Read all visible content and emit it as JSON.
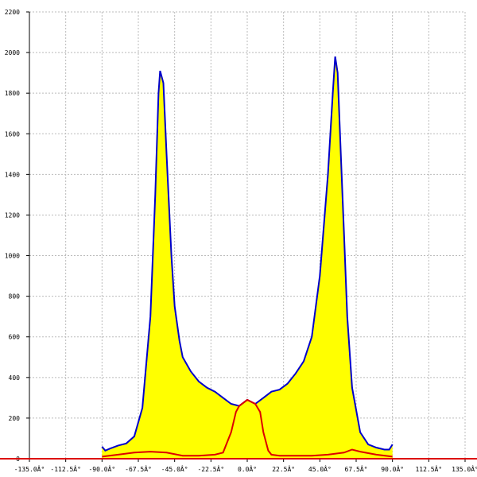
{
  "chart_data": {
    "type": "area",
    "xlim": [
      -135,
      135
    ],
    "ylim": [
      0,
      2200
    ],
    "xticks": [
      {
        "value": -135,
        "label": "-135.0Â°"
      },
      {
        "value": -112.5,
        "label": "-112.5Â°"
      },
      {
        "value": -90,
        "label": "-90.0Â°"
      },
      {
        "value": -67.5,
        "label": "-67.5Â°"
      },
      {
        "value": -45,
        "label": "-45.0Â°"
      },
      {
        "value": -22.5,
        "label": "-22.5Â°"
      },
      {
        "value": 0,
        "label": "0.0Â°"
      },
      {
        "value": 22.5,
        "label": "22.5Â°"
      },
      {
        "value": 45,
        "label": "45.0Â°"
      },
      {
        "value": 67.5,
        "label": "67.5Â°"
      },
      {
        "value": 90,
        "label": "90.0Â°"
      },
      {
        "value": 112.5,
        "label": "112.5Â°"
      },
      {
        "value": 135,
        "label": "135.0Â°"
      }
    ],
    "yticks": [
      0,
      200,
      400,
      600,
      800,
      1000,
      1200,
      1400,
      1600,
      1800,
      2000,
      2200
    ],
    "grid": true,
    "series": [
      {
        "color": "#0000cc",
        "fill": "#ffff00",
        "x": [
          -90,
          -88,
          -85,
          -80,
          -75,
          -70,
          -65,
          -60,
          -57,
          -55,
          -54,
          -52,
          -50,
          -47,
          -45,
          -42,
          -40,
          -35,
          -30,
          -25,
          -20,
          -15,
          -10,
          -5,
          0,
          5,
          10,
          15,
          20,
          25,
          30,
          35,
          40,
          45,
          50,
          53,
          54.5,
          56,
          58,
          60,
          62,
          65,
          70,
          75,
          80,
          85,
          88,
          90
        ],
        "values": [
          60,
          40,
          50,
          65,
          75,
          110,
          250,
          700,
          1300,
          1800,
          1910,
          1850,
          1500,
          1000,
          750,
          580,
          500,
          430,
          380,
          350,
          330,
          300,
          270,
          260,
          290,
          270,
          300,
          330,
          340,
          370,
          420,
          480,
          600,
          900,
          1400,
          1800,
          1980,
          1900,
          1500,
          1100,
          700,
          350,
          130,
          70,
          55,
          45,
          45,
          70
        ]
      },
      {
        "color": "#dd0000",
        "x": [
          -90,
          -80,
          -70,
          -60,
          -50,
          -40,
          -30,
          -20,
          -15,
          -10,
          -7,
          -5,
          0,
          5,
          8,
          10,
          13,
          15,
          20,
          30,
          40,
          50,
          60,
          65,
          70,
          80,
          90
        ],
        "values": [
          10,
          20,
          30,
          35,
          30,
          15,
          15,
          20,
          30,
          130,
          230,
          260,
          290,
          270,
          230,
          130,
          40,
          20,
          15,
          15,
          15,
          20,
          30,
          45,
          35,
          20,
          10
        ]
      }
    ]
  }
}
